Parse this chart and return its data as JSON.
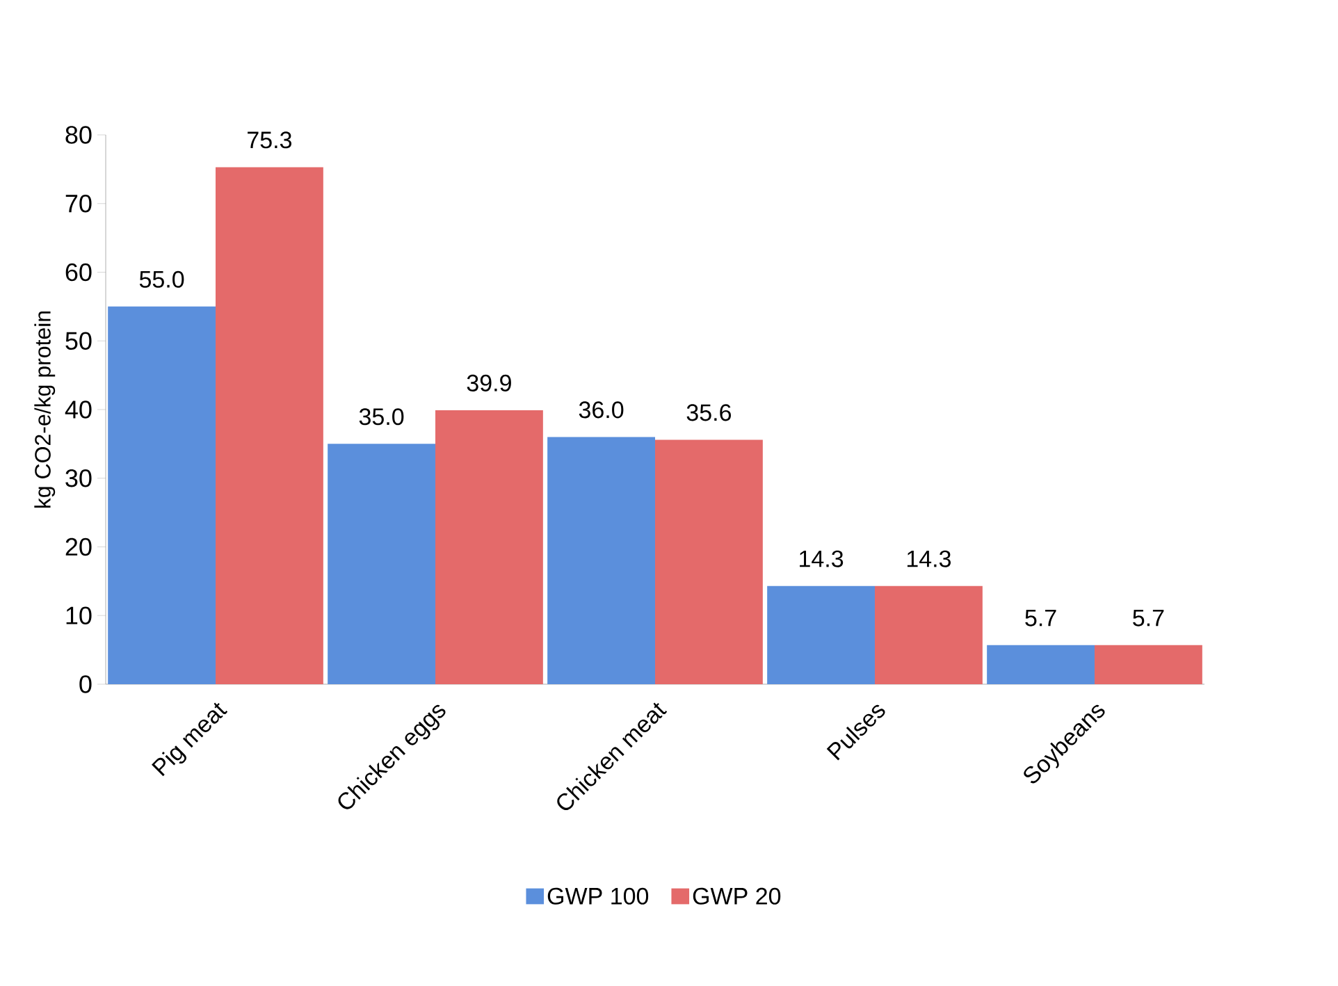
{
  "chart_data": {
    "type": "bar",
    "ylabel": "kg CO2-e/kg protein",
    "categories": [
      "Pig meat",
      "Chicken eggs",
      "Chicken meat",
      "Pulses",
      "Soybeans"
    ],
    "series": [
      {
        "name": "GWP 100",
        "color": "#5b8fdc",
        "values": [
          55.0,
          35.0,
          36.0,
          14.3,
          5.7
        ],
        "value_labels": [
          "55.0",
          "35.0",
          "36.0",
          "14.3",
          "5.7"
        ]
      },
      {
        "name": "GWP 20",
        "color": "#e46a6a",
        "values": [
          75.3,
          39.9,
          35.6,
          14.3,
          5.7
        ],
        "value_labels": [
          "75.3",
          "39.9",
          "35.6",
          "14.3",
          "5.7"
        ]
      }
    ],
    "ylim": [
      0,
      80
    ],
    "yticks": [
      0,
      10,
      20,
      30,
      40,
      50,
      60,
      70,
      80
    ],
    "grid": false,
    "legend": "bottom"
  }
}
